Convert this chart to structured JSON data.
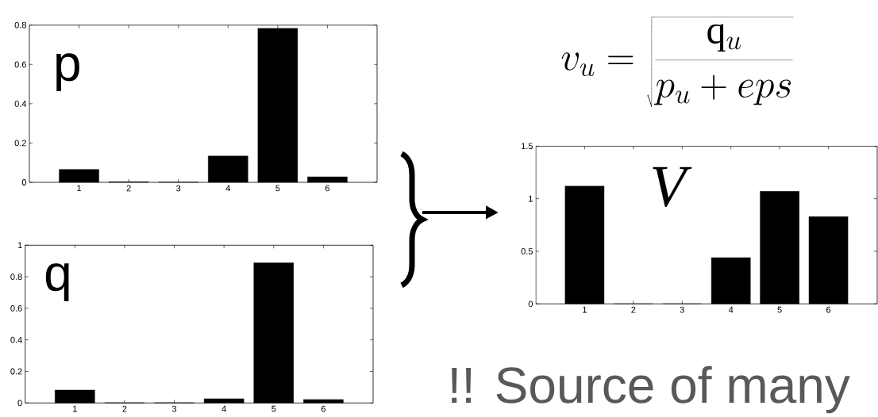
{
  "chart_data": [
    {
      "type": "bar",
      "categories": [
        "1",
        "2",
        "3",
        "4",
        "5",
        "6"
      ],
      "values": [
        0.066,
        0.003,
        0.001,
        0.134,
        0.784,
        0.028
      ],
      "color": "#000000",
      "ylim": [
        0,
        0.8
      ],
      "yticks": [
        0,
        0.2,
        0.4,
        0.6,
        0.8
      ],
      "annotations": [
        "p"
      ]
    },
    {
      "type": "bar",
      "categories": [
        "1",
        "2",
        "3",
        "4",
        "5",
        "6"
      ],
      "values": [
        0.082,
        0.002,
        0.002,
        0.027,
        0.888,
        0.022
      ],
      "color": "#000000",
      "ylim": [
        0,
        1
      ],
      "yticks": [
        0,
        0.2,
        0.4,
        0.6,
        0.8,
        1
      ],
      "annotations": [
        "q"
      ]
    },
    {
      "type": "bar",
      "title": "v_u = \\sqrt{\\frac{\\mathrm{q}_u}{p_u + eps}}",
      "categories": [
        "1",
        "2",
        "3",
        "4",
        "5",
        "6"
      ],
      "values": [
        1.12,
        0,
        0,
        0.44,
        1.07,
        0.83
      ],
      "color": "#000000",
      "ylim": [
        0,
        1.5
      ],
      "yticks": [
        0,
        0.5,
        1,
        1.5
      ],
      "annotations": [
        "V",
        "!! Source of many"
      ]
    }
  ]
}
